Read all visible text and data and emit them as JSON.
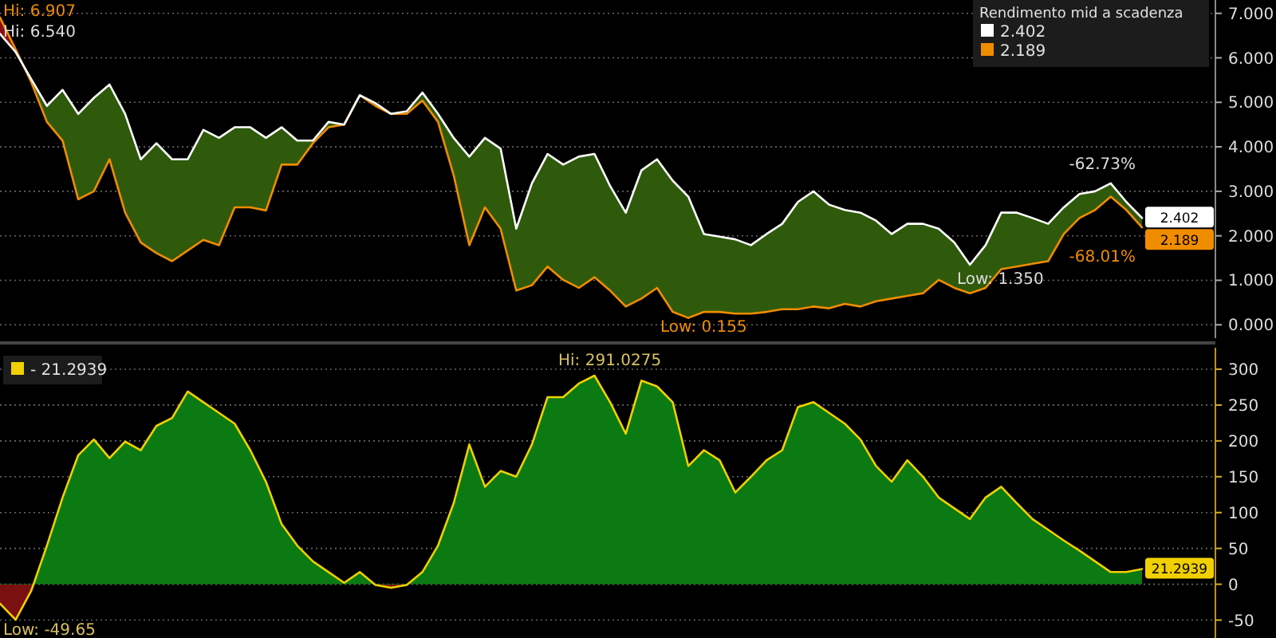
{
  "chart_data": [
    {
      "type": "line",
      "legend_title": "Rendimento mid a scadenza",
      "legend": "top right",
      "grid": "y",
      "ylim": [
        -0.3,
        7.3
      ],
      "yticks": [
        {
          "value": 0,
          "label": "0.000"
        },
        {
          "value": 1,
          "label": "1.000"
        },
        {
          "value": 2,
          "label": "2.000"
        },
        {
          "value": 3,
          "label": "3.000"
        },
        {
          "value": 4,
          "label": "4.000"
        },
        {
          "value": 5,
          "label": "5.000"
        },
        {
          "value": 6,
          "label": "6.000"
        },
        {
          "value": 7,
          "label": "7.000"
        }
      ],
      "categories": [
        null,
        null,
        null,
        null,
        null,
        null,
        null,
        null,
        null,
        null,
        null,
        null,
        null,
        null,
        null,
        null,
        null,
        null,
        null,
        null,
        null,
        null,
        null,
        null,
        null,
        null,
        null,
        null,
        null,
        null,
        null,
        null,
        null,
        null,
        null,
        null,
        null,
        null,
        null,
        null,
        null,
        null,
        null,
        null,
        null,
        null,
        null,
        null,
        null,
        null,
        null,
        null,
        null,
        null,
        null,
        null,
        null,
        null,
        null,
        null,
        null,
        null,
        null,
        null,
        null,
        null,
        null,
        null,
        null,
        null,
        null,
        null,
        null,
        null
      ],
      "series": [
        {
          "name": "2.402",
          "color": "#ffffff",
          "values": [
            6.54,
            6.13,
            5.52,
            4.92,
            5.28,
            4.74,
            5.1,
            5.4,
            4.74,
            3.72,
            4.08,
            3.72,
            3.72,
            4.38,
            4.2,
            4.44,
            4.44,
            4.2,
            4.44,
            4.14,
            4.14,
            4.56,
            4.5,
            5.16,
            4.98,
            4.74,
            4.8,
            5.22,
            4.74,
            4.2,
            3.78,
            4.2,
            3.96,
            2.16,
            3.18,
            3.84,
            3.6,
            3.78,
            3.84,
            3.12,
            2.52,
            3.47,
            3.72,
            3.24,
            2.88,
            2.04,
            1.98,
            1.92,
            1.79,
            2.04,
            2.27,
            2.76,
            3.0,
            2.7,
            2.58,
            2.52,
            2.34,
            2.04,
            2.27,
            2.27,
            2.16,
            1.85,
            1.35,
            1.79,
            2.52,
            2.52,
            2.4,
            2.27,
            2.64,
            2.94,
            3.0,
            3.18,
            2.76,
            2.402
          ]
        },
        {
          "name": "2.189",
          "color": "#f08c00",
          "values": [
            6.907,
            6.19,
            5.45,
            4.56,
            4.14,
            2.82,
            3.0,
            3.72,
            2.52,
            1.85,
            1.61,
            1.43,
            1.67,
            1.91,
            1.79,
            2.64,
            2.64,
            2.57,
            3.6,
            3.6,
            4.08,
            4.44,
            4.5,
            5.16,
            4.92,
            4.74,
            4.74,
            5.04,
            4.56,
            3.36,
            1.79,
            2.64,
            2.16,
            0.77,
            0.89,
            1.31,
            1.01,
            0.83,
            1.07,
            0.77,
            0.41,
            0.59,
            0.83,
            0.29,
            0.155,
            0.29,
            0.29,
            0.25,
            0.25,
            0.29,
            0.35,
            0.35,
            0.41,
            0.37,
            0.47,
            0.41,
            0.53,
            0.59,
            0.65,
            0.71,
            1.01,
            0.83,
            0.71,
            0.83,
            1.25,
            1.31,
            1.37,
            1.43,
            2.04,
            2.4,
            2.58,
            2.88,
            2.58,
            2.189
          ]
        }
      ],
      "annotations": [
        "2.402",
        "2.189",
        "Hi: 6.907",
        "Hi: 6.540",
        "Low: 0.155",
        "Low: 1.350",
        "-62.73%",
        "-68.01%"
      ]
    },
    {
      "type": "area",
      "legend": "top left",
      "grid": "y",
      "ylim": [
        -75,
        330
      ],
      "yticks": [
        -50,
        0,
        50,
        100,
        150,
        200,
        250,
        300
      ],
      "categories": [
        null,
        null,
        null,
        null,
        null,
        null,
        null,
        null,
        null,
        null,
        null,
        null,
        null,
        null,
        null,
        null,
        null,
        null,
        null,
        null,
        null,
        null,
        null,
        null,
        null,
        null,
        null,
        null,
        null,
        null,
        null,
        null,
        null,
        null,
        null,
        null,
        null,
        null,
        null,
        null,
        null,
        null,
        null,
        null,
        null,
        null,
        null,
        null,
        null,
        null,
        null,
        null,
        null,
        null,
        null,
        null,
        null,
        null,
        null,
        null,
        null,
        null,
        null,
        null,
        null,
        null,
        null,
        null,
        null,
        null,
        null,
        null,
        null,
        null
      ],
      "series": [
        {
          "name": "- 21.2939",
          "color": "#f0d000",
          "values": [
            -27,
            -49.65,
            -9,
            54,
            121,
            180,
            202,
            176,
            199,
            187,
            221,
            232,
            269,
            254,
            239,
            224,
            187,
            143,
            84,
            54,
            32,
            17,
            2,
            17,
            -1,
            -5,
            -1,
            17,
            54,
            113,
            195,
            136,
            158,
            150,
            195,
            261,
            261,
            280,
            291.0275,
            254,
            210,
            284,
            276,
            254,
            165,
            187,
            173,
            128,
            150,
            173,
            187,
            247,
            254,
            239,
            224,
            202,
            165,
            143,
            173,
            150,
            121,
            106,
            91,
            121,
            136,
            113,
            91,
            76,
            61,
            47,
            32,
            17,
            17,
            21.2939
          ]
        }
      ],
      "annotations": [
        "21.2939",
        "Hi: 291.0275",
        "Low: -49.65"
      ]
    }
  ]
}
